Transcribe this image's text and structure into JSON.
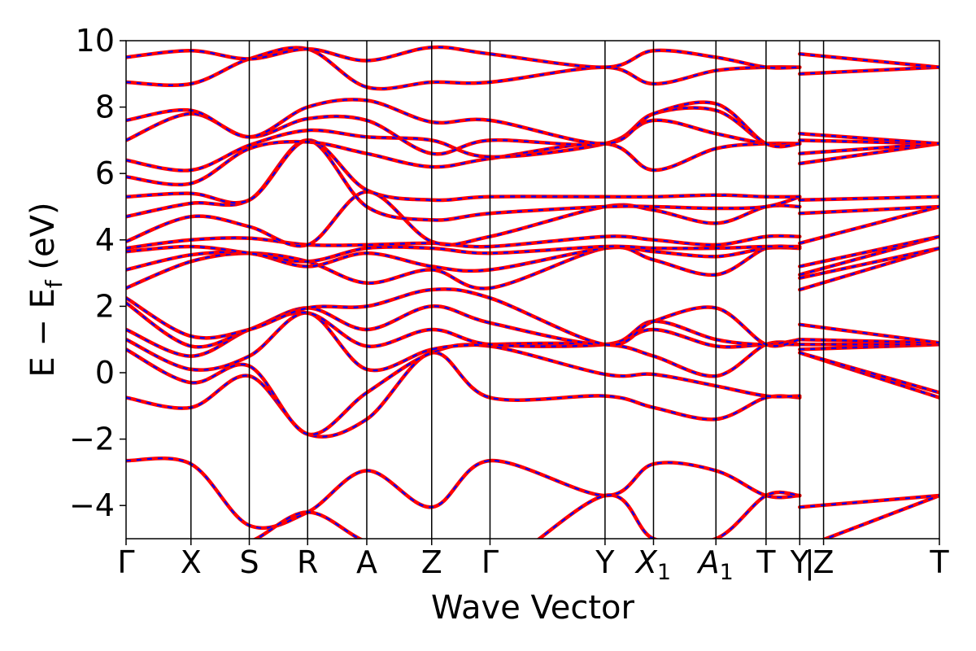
{
  "chart_data": {
    "type": "line",
    "xlabel": "Wave Vector",
    "ylabel": "E − E_f (eV)",
    "ylabel_parts": {
      "main": "E − E",
      "sub": "f",
      "unit": " (eV)"
    },
    "ylim": [
      -5,
      10
    ],
    "yticks": [
      10,
      8,
      6,
      4,
      2,
      0,
      -2,
      -4
    ],
    "ytick_labels": [
      "10",
      "8",
      "6",
      "4",
      "2",
      "0",
      "−2",
      "−4"
    ],
    "grid": false,
    "legend": "none",
    "colors": {
      "series_a": "#ff0000",
      "series_b": "#0000ff"
    },
    "kpoints": [
      {
        "label": "Γ",
        "x": 0.0
      },
      {
        "label": "X",
        "x": 0.79
      },
      {
        "label": "S",
        "x": 1.5
      },
      {
        "label": "R",
        "x": 2.21
      },
      {
        "label": "A",
        "x": 2.93
      },
      {
        "label": "Z",
        "x": 3.72
      },
      {
        "label": "Γ",
        "x": 4.43
      },
      {
        "label": "Y",
        "x": 5.83
      },
      {
        "label": "X",
        "sub": "1",
        "x": 6.42
      },
      {
        "label": "A",
        "sub": "1",
        "x": 7.18
      },
      {
        "label": "T",
        "x": 7.79
      },
      {
        "label": "Y",
        "x": 8.2
      },
      {
        "label": "|",
        "x": 8.32
      },
      {
        "label": "Z",
        "x": 8.49
      },
      {
        "label": "T",
        "x": 9.9
      }
    ],
    "segments": [
      [
        0.0,
        8.2
      ],
      [
        8.2,
        9.9
      ]
    ],
    "kpoint_x": [
      0.0,
      0.79,
      1.5,
      2.21,
      2.93,
      3.72,
      4.43,
      5.83,
      6.42,
      7.18,
      7.79,
      8.2,
      8.2,
      9.9
    ],
    "bands": [
      [
        -2.65,
        -2.75,
        -4.6,
        -4.2,
        -2.95,
        -4.05,
        -2.65,
        -3.7,
        -2.75,
        -2.95,
        -3.7,
        -3.7,
        -4.05,
        -3.7
      ],
      [
        -5.2,
        -5.5,
        -5.1,
        -4.2,
        -5.1,
        -5.6,
        -6.0,
        -3.7,
        -5.0,
        -5.0,
        -3.7,
        -3.7,
        -5.3,
        -3.7
      ],
      [
        -0.75,
        -1.05,
        -0.1,
        -1.85,
        -1.4,
        0.6,
        -0.75,
        -0.7,
        -1.05,
        -1.4,
        -0.75,
        -0.75,
        0.6,
        -0.75
      ],
      [
        0.7,
        -0.3,
        0.2,
        -1.85,
        -0.6,
        0.6,
        0.8,
        -0.05,
        -0.05,
        -0.4,
        -0.7,
        -0.7,
        0.6,
        -0.6
      ],
      [
        1.0,
        0.1,
        0.5,
        1.8,
        0.1,
        0.7,
        0.85,
        0.85,
        0.5,
        -0.1,
        0.85,
        0.85,
        0.7,
        0.85
      ],
      [
        1.3,
        0.5,
        1.3,
        1.8,
        0.8,
        1.3,
        0.85,
        0.85,
        1.3,
        0.8,
        0.85,
        0.85,
        0.85,
        0.85
      ],
      [
        2.1,
        0.8,
        1.3,
        1.95,
        1.3,
        2.0,
        1.5,
        0.85,
        1.55,
        1.0,
        0.85,
        1.0,
        1.0,
        0.9
      ],
      [
        2.25,
        1.1,
        1.3,
        1.95,
        2.0,
        2.5,
        2.25,
        0.85,
        1.55,
        1.95,
        0.85,
        1.0,
        1.45,
        0.9
      ],
      [
        2.55,
        3.35,
        3.6,
        3.35,
        2.7,
        3.1,
        2.55,
        3.75,
        3.4,
        2.95,
        3.75,
        3.75,
        2.5,
        3.75
      ],
      [
        3.1,
        3.55,
        3.6,
        3.2,
        3.6,
        3.2,
        3.1,
        3.75,
        3.65,
        3.5,
        3.75,
        3.75,
        2.85,
        3.75
      ],
      [
        3.65,
        3.8,
        3.6,
        3.35,
        3.75,
        3.75,
        3.6,
        3.8,
        3.75,
        3.75,
        3.8,
        3.8,
        2.95,
        4.1
      ],
      [
        3.75,
        4.0,
        4.05,
        3.85,
        3.85,
        3.9,
        3.8,
        4.1,
        4.0,
        3.85,
        4.1,
        4.1,
        3.2,
        4.1
      ],
      [
        3.95,
        4.7,
        4.4,
        3.85,
        5.45,
        3.95,
        4.1,
        5.0,
        4.9,
        4.5,
        5.0,
        5.0,
        3.9,
        5.0
      ],
      [
        4.7,
        5.1,
        5.2,
        7.0,
        5.0,
        4.6,
        4.8,
        5.0,
        5.0,
        4.95,
        5.0,
        5.3,
        4.8,
        5.0
      ],
      [
        5.3,
        5.4,
        5.2,
        7.0,
        5.5,
        5.2,
        5.3,
        5.3,
        5.3,
        5.35,
        5.3,
        5.3,
        5.2,
        5.3
      ],
      [
        5.9,
        5.7,
        6.75,
        6.95,
        6.6,
        6.2,
        6.45,
        6.9,
        6.1,
        6.75,
        6.9,
        6.9,
        6.3,
        6.9
      ],
      [
        6.4,
        6.1,
        6.85,
        7.3,
        7.1,
        7.0,
        6.5,
        6.9,
        7.6,
        7.2,
        6.9,
        6.9,
        6.6,
        6.9
      ],
      [
        7.0,
        7.8,
        7.1,
        7.65,
        7.6,
        6.6,
        7.0,
        6.9,
        7.8,
        7.9,
        6.9,
        6.9,
        7.0,
        6.9
      ],
      [
        7.6,
        7.9,
        7.1,
        8.0,
        8.2,
        7.55,
        7.6,
        6.9,
        7.8,
        8.1,
        6.9,
        6.9,
        7.2,
        6.9
      ],
      [
        8.75,
        8.7,
        9.45,
        9.75,
        8.6,
        8.75,
        8.75,
        9.2,
        8.7,
        9.1,
        9.2,
        9.2,
        9.0,
        9.2
      ],
      [
        9.5,
        9.7,
        9.45,
        9.75,
        9.4,
        9.8,
        9.6,
        9.2,
        9.7,
        9.5,
        9.2,
        9.2,
        9.6,
        9.2
      ]
    ]
  }
}
